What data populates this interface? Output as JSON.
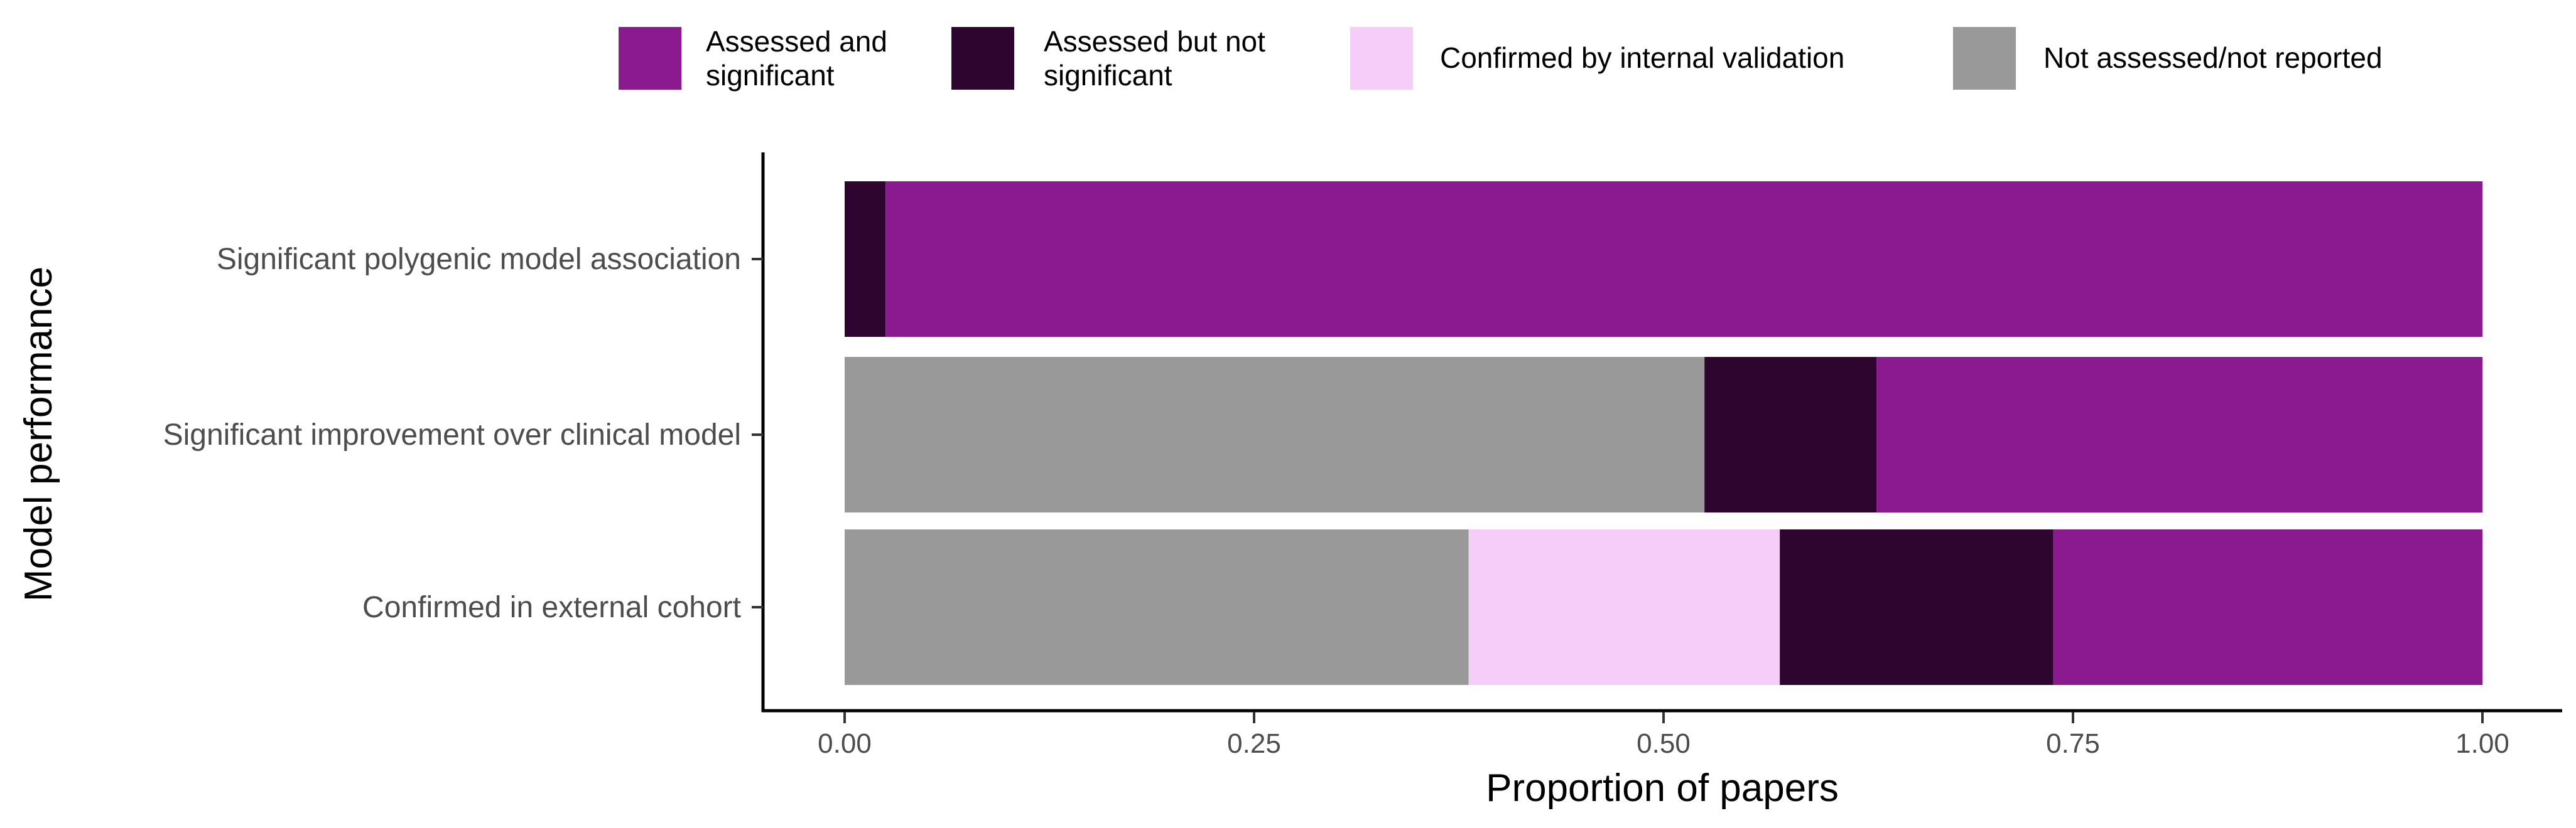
{
  "chart_data": {
    "type": "bar",
    "orientation": "horizontal",
    "stacked": true,
    "title": "",
    "xlabel": "Proportion of papers",
    "ylabel": "Model performance",
    "xlim": [
      0,
      1
    ],
    "xticks": [
      "0.00",
      "0.25",
      "0.50",
      "0.75",
      "1.00"
    ],
    "grid": false,
    "legend_position": "top",
    "categories": [
      "Significant polygenic model association",
      "Significant improvement over clinical model",
      "Confirmed in external cohort"
    ],
    "series": [
      {
        "name": "Assessed and significant",
        "color": "#8b1a91",
        "values": [
          0.975,
          0.37,
          0.262
        ]
      },
      {
        "name": "Assessed but not significant",
        "color": "#2e052e",
        "values": [
          0.025,
          0.105,
          0.167
        ]
      },
      {
        "name": "Confirmed by internal validation",
        "color": "#f6ccf8",
        "values": [
          0,
          0,
          0.19
        ]
      },
      {
        "name": "Not assessed/not reported",
        "color": "#999999",
        "values": [
          0,
          0.525,
          0.381
        ]
      }
    ],
    "stack_order": [
      "Not assessed/not reported",
      "Confirmed by internal validation",
      "Assessed but not significant",
      "Assessed and significant"
    ],
    "legend_labels": [
      [
        "Assessed and",
        "significant"
      ],
      [
        "Assessed but not",
        "significant"
      ],
      [
        "Confirmed by internal validation"
      ],
      [
        "Not assessed/not reported"
      ]
    ]
  }
}
